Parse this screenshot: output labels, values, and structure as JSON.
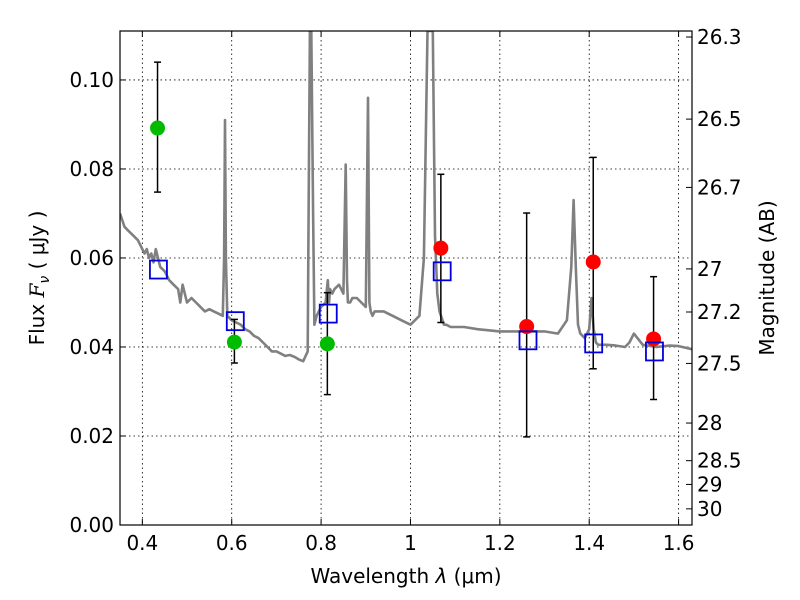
{
  "chart_data": {
    "type": "scatter",
    "xlabel_prefix": "Wavelength  ",
    "xlabel_lambda": "λ",
    "xlabel_unit": " (μm)",
    "ylabel_prefix": "Flux  ",
    "ylabel_symbol": "F",
    "ylabel_sub": "ν",
    "ylabel_unit": "  ( μJy )",
    "y2label": "Magnitude (AB)",
    "xlim": [
      0.35,
      1.63
    ],
    "ylim": [
      0.0,
      0.111
    ],
    "grid": true,
    "x_ticks": [
      {
        "value": 0.4,
        "label": "0.4"
      },
      {
        "value": 0.6,
        "label": "0.6"
      },
      {
        "value": 0.8,
        "label": "0.8"
      },
      {
        "value": 1.0,
        "label": "1"
      },
      {
        "value": 1.2,
        "label": "1.2"
      },
      {
        "value": 1.4,
        "label": "1.4"
      },
      {
        "value": 1.6,
        "label": "1.6"
      }
    ],
    "y_ticks": [
      {
        "value": 0.0,
        "label": "0.00"
      },
      {
        "value": 0.02,
        "label": "0.02"
      },
      {
        "value": 0.04,
        "label": "0.04"
      },
      {
        "value": 0.06,
        "label": "0.06"
      },
      {
        "value": 0.08,
        "label": "0.08"
      },
      {
        "value": 0.1,
        "label": "0.10"
      }
    ],
    "y2_ticks": [
      {
        "value": 26.3,
        "label": "26.3"
      },
      {
        "value": 26.5,
        "label": "26.5"
      },
      {
        "value": 26.7,
        "label": "26.7"
      },
      {
        "value": 27.0,
        "label": "27"
      },
      {
        "value": 27.2,
        "label": "27.2"
      },
      {
        "value": 27.5,
        "label": "27.5"
      },
      {
        "value": 28.0,
        "label": "28"
      },
      {
        "value": 28.5,
        "label": "28.5"
      },
      {
        "value": 29.0,
        "label": "29"
      },
      {
        "value": 30.0,
        "label": "30"
      }
    ],
    "model_spectrum": {
      "color": "#808080",
      "x": [
        0.35,
        0.36,
        0.37,
        0.38,
        0.39,
        0.4,
        0.405,
        0.41,
        0.415,
        0.42,
        0.425,
        0.43,
        0.435,
        0.44,
        0.45,
        0.46,
        0.47,
        0.48,
        0.485,
        0.49,
        0.5,
        0.51,
        0.52,
        0.53,
        0.54,
        0.55,
        0.56,
        0.57,
        0.58,
        0.583,
        0.585,
        0.587,
        0.59,
        0.6,
        0.61,
        0.62,
        0.63,
        0.64,
        0.65,
        0.66,
        0.67,
        0.68,
        0.69,
        0.7,
        0.71,
        0.72,
        0.73,
        0.74,
        0.75,
        0.76,
        0.77,
        0.772,
        0.775,
        0.778,
        0.782,
        0.785,
        0.79,
        0.8,
        0.81,
        0.815,
        0.818,
        0.82,
        0.825,
        0.83,
        0.84,
        0.85,
        0.855,
        0.858,
        0.86,
        0.865,
        0.87,
        0.88,
        0.89,
        0.9,
        0.905,
        0.908,
        0.911,
        0.915,
        0.92,
        0.94,
        0.96,
        0.98,
        1.0,
        1.02,
        1.03,
        1.038,
        1.045,
        1.05,
        1.055,
        1.06,
        1.065,
        1.075,
        1.08,
        1.09,
        1.1,
        1.12,
        1.15,
        1.2,
        1.25,
        1.3,
        1.33,
        1.35,
        1.36,
        1.365,
        1.37,
        1.375,
        1.38,
        1.39,
        1.4,
        1.405,
        1.41,
        1.415,
        1.42,
        1.44,
        1.46,
        1.48,
        1.49,
        1.5,
        1.52,
        1.55,
        1.58,
        1.6,
        1.63
      ],
      "y": [
        0.07,
        0.067,
        0.066,
        0.065,
        0.064,
        0.062,
        0.061,
        0.062,
        0.06,
        0.061,
        0.059,
        0.062,
        0.06,
        0.058,
        0.057,
        0.055,
        0.054,
        0.053,
        0.05,
        0.054,
        0.05,
        0.051,
        0.05,
        0.049,
        0.048,
        0.0485,
        0.048,
        0.0475,
        0.047,
        0.06,
        0.091,
        0.06,
        0.047,
        0.046,
        0.0455,
        0.045,
        0.044,
        0.0435,
        0.0425,
        0.042,
        0.041,
        0.04,
        0.039,
        0.039,
        0.0385,
        0.038,
        0.0382,
        0.0378,
        0.0372,
        0.0368,
        0.039,
        0.07,
        0.111,
        0.111,
        0.07,
        0.045,
        0.047,
        0.049,
        0.05,
        0.055,
        0.05,
        0.053,
        0.052,
        0.053,
        0.054,
        0.052,
        0.081,
        0.055,
        0.05,
        0.05,
        0.051,
        0.051,
        0.05,
        0.049,
        0.096,
        0.05,
        0.048,
        0.047,
        0.048,
        0.048,
        0.047,
        0.046,
        0.045,
        0.047,
        0.06,
        0.111,
        0.111,
        0.111,
        0.065,
        0.052,
        0.048,
        0.045,
        0.045,
        0.0445,
        0.0445,
        0.0445,
        0.044,
        0.0435,
        0.0435,
        0.0435,
        0.043,
        0.046,
        0.058,
        0.073,
        0.058,
        0.045,
        0.043,
        0.042,
        0.044,
        0.051,
        0.044,
        0.041,
        0.0405,
        0.0405,
        0.0403,
        0.04,
        0.041,
        0.043,
        0.0405,
        0.04,
        0.0403,
        0.0402,
        0.0395
      ]
    },
    "series": [
      {
        "marker": "circle",
        "color": "#00bb00",
        "points": [
          {
            "x": 0.434,
            "y": 0.0892,
            "err": [
              0.0748,
              0.104
            ]
          },
          {
            "x": 0.606,
            "y": 0.0411,
            "err": [
              0.0364,
              0.0462
            ]
          },
          {
            "x": 0.814,
            "y": 0.0407,
            "err": [
              0.0293,
              0.0522
            ]
          }
        ]
      },
      {
        "marker": "circle",
        "color": "#ff0000",
        "points": [
          {
            "x": 1.068,
            "y": 0.0622,
            "err": [
              0.0455,
              0.0788
            ]
          },
          {
            "x": 1.26,
            "y": 0.0446,
            "err": [
              0.0198,
              0.0701
            ]
          },
          {
            "x": 1.409,
            "y": 0.0591,
            "err": [
              0.0351,
              0.0826
            ]
          },
          {
            "x": 1.544,
            "y": 0.0418,
            "err": [
              0.0282,
              0.0558
            ]
          }
        ]
      },
      {
        "marker": "open-square",
        "color": "#0000dd",
        "points": [
          {
            "x": 0.436,
            "y": 0.0574
          },
          {
            "x": 0.608,
            "y": 0.0458
          },
          {
            "x": 0.816,
            "y": 0.0475
          },
          {
            "x": 1.071,
            "y": 0.057
          },
          {
            "x": 1.263,
            "y": 0.0415
          },
          {
            "x": 1.41,
            "y": 0.0408
          },
          {
            "x": 1.546,
            "y": 0.039
          }
        ]
      }
    ]
  }
}
